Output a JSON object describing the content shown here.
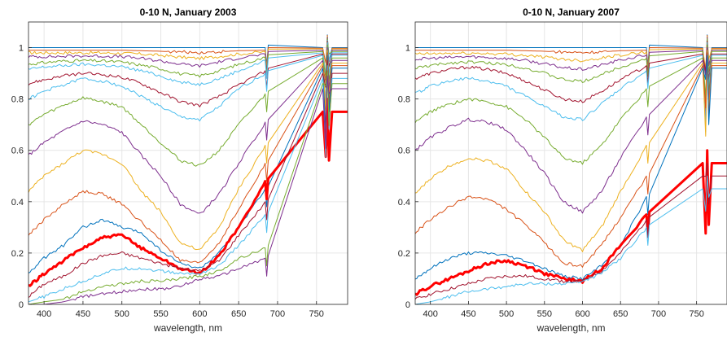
{
  "chart_data": [
    {
      "type": "line",
      "title": "0-10 N, January 2003",
      "xlabel": "wavelength, nm",
      "ylabel": "",
      "xlim": [
        380,
        790
      ],
      "ylim": [
        0,
        1.1
      ],
      "xticks": [
        400,
        450,
        500,
        550,
        600,
        650,
        700,
        750
      ],
      "yticks": [
        0,
        0.2,
        0.4,
        0.6,
        0.8,
        1
      ],
      "grid": true,
      "x": [
        380,
        400,
        425,
        450,
        475,
        500,
        525,
        550,
        575,
        600,
        625,
        650,
        685
      ],
      "series": [
        {
          "color": "#0072BD",
          "level": 1.0,
          "values": [
            1.0,
            1.0,
            1.0,
            1.0,
            1.0,
            1.0,
            1.0,
            1.0,
            1.0,
            1.0,
            1.0,
            1.0,
            1.0
          ]
        },
        {
          "color": "#D95319",
          "level": 0.998,
          "values": [
            0.99,
            0.99,
            0.99,
            0.99,
            0.99,
            0.99,
            0.988,
            0.986,
            0.983,
            0.981,
            0.984,
            0.988,
            0.99
          ]
        },
        {
          "color": "#EDB120",
          "level": 0.995,
          "values": [
            0.98,
            0.98,
            0.98,
            0.98,
            0.98,
            0.978,
            0.975,
            0.97,
            0.963,
            0.958,
            0.966,
            0.975,
            0.984
          ]
        },
        {
          "color": "#7E2F8E",
          "level": 0.99,
          "values": [
            0.965,
            0.965,
            0.966,
            0.968,
            0.967,
            0.965,
            0.958,
            0.948,
            0.936,
            0.929,
            0.945,
            0.96,
            0.975
          ]
        },
        {
          "color": "#77AC30",
          "level": 0.985,
          "values": [
            0.935,
            0.942,
            0.948,
            0.95,
            0.948,
            0.944,
            0.932,
            0.918,
            0.898,
            0.89,
            0.91,
            0.935,
            0.962
          ]
        },
        {
          "color": "#4DBEEE",
          "level": 0.98,
          "values": [
            0.915,
            0.925,
            0.93,
            0.935,
            0.932,
            0.925,
            0.91,
            0.89,
            0.865,
            0.857,
            0.88,
            0.91,
            0.95
          ]
        },
        {
          "color": "#A2142F",
          "level": 0.975,
          "values": [
            0.86,
            0.875,
            0.89,
            0.9,
            0.895,
            0.885,
            0.86,
            0.825,
            0.79,
            0.775,
            0.81,
            0.855,
            0.91
          ]
        },
        {
          "color": "#4DBEEE",
          "level": 0.97,
          "values": [
            0.8,
            0.83,
            0.855,
            0.88,
            0.87,
            0.85,
            0.81,
            0.77,
            0.73,
            0.72,
            0.77,
            0.84,
            0.9
          ]
        },
        {
          "color": "#77AC30",
          "level": 0.96,
          "values": [
            0.7,
            0.74,
            0.775,
            0.805,
            0.79,
            0.77,
            0.7,
            0.63,
            0.56,
            0.54,
            0.6,
            0.7,
            0.82
          ]
        },
        {
          "color": "#7E2F8E",
          "level": 0.95,
          "values": [
            0.58,
            0.63,
            0.675,
            0.715,
            0.7,
            0.67,
            0.58,
            0.5,
            0.39,
            0.35,
            0.43,
            0.55,
            0.71
          ]
        },
        {
          "color": "#EDB120",
          "level": 0.94,
          "values": [
            0.44,
            0.5,
            0.55,
            0.6,
            0.585,
            0.55,
            0.44,
            0.36,
            0.24,
            0.21,
            0.3,
            0.45,
            0.62
          ]
        },
        {
          "color": "#D95319",
          "level": 0.93,
          "values": [
            0.27,
            0.33,
            0.39,
            0.44,
            0.43,
            0.39,
            0.32,
            0.25,
            0.17,
            0.16,
            0.24,
            0.37,
            0.55
          ]
        },
        {
          "color": "#0072BD",
          "level": 0.92,
          "values": [
            0.12,
            0.18,
            0.23,
            0.3,
            0.33,
            0.3,
            0.28,
            0.21,
            0.16,
            0.14,
            0.2,
            0.3,
            0.45
          ]
        },
        {
          "color": "#FF0000",
          "level": 0.75,
          "values": [
            0.07,
            0.12,
            0.17,
            0.22,
            0.26,
            0.27,
            0.22,
            0.18,
            0.14,
            0.12,
            0.19,
            0.3,
            0.48
          ],
          "bold": true
        },
        {
          "color": "#A2142F",
          "level": 0.9,
          "values": [
            0.03,
            0.08,
            0.11,
            0.16,
            0.19,
            0.2,
            0.18,
            0.16,
            0.14,
            0.13,
            0.17,
            0.27,
            0.4
          ]
        },
        {
          "color": "#4DBEEE",
          "level": 0.88,
          "values": [
            0.01,
            0.03,
            0.06,
            0.09,
            0.12,
            0.14,
            0.14,
            0.13,
            0.12,
            0.12,
            0.15,
            0.23,
            0.35
          ]
        },
        {
          "color": "#77AC30",
          "level": 0.86,
          "values": [
            0.0,
            0.01,
            0.02,
            0.05,
            0.07,
            0.08,
            0.09,
            0.09,
            0.1,
            0.11,
            0.13,
            0.18,
            0.22
          ]
        },
        {
          "color": "#7E2F8E",
          "level": 0.84,
          "values": [
            0.0,
            0.0,
            0.01,
            0.03,
            0.04,
            0.05,
            0.06,
            0.06,
            0.07,
            0.1,
            0.11,
            0.14,
            0.18
          ]
        }
      ]
    },
    {
      "type": "line",
      "title": "0-10 N, January 2007",
      "xlabel": "wavelength, nm",
      "ylabel": "",
      "xlim": [
        380,
        790
      ],
      "ylim": [
        0,
        1.1
      ],
      "xticks": [
        400,
        450,
        500,
        550,
        600,
        650,
        700,
        750
      ],
      "yticks": [
        0,
        0.2,
        0.4,
        0.6,
        0.8,
        1
      ],
      "grid": true,
      "x": [
        380,
        400,
        425,
        450,
        475,
        500,
        525,
        550,
        575,
        600,
        625,
        650,
        685
      ],
      "series": [
        {
          "color": "#0072BD",
          "level": 1.0,
          "values": [
            1.0,
            1.0,
            1.0,
            1.0,
            1.0,
            1.0,
            1.0,
            1.0,
            1.0,
            1.0,
            1.0,
            1.0,
            1.0
          ]
        },
        {
          "color": "#D95319",
          "level": 0.998,
          "values": [
            0.99,
            0.99,
            0.99,
            0.99,
            0.99,
            0.99,
            0.988,
            0.986,
            0.983,
            0.981,
            0.984,
            0.988,
            0.99
          ]
        },
        {
          "color": "#EDB120",
          "level": 0.995,
          "values": [
            0.975,
            0.976,
            0.978,
            0.978,
            0.977,
            0.975,
            0.97,
            0.963,
            0.955,
            0.95,
            0.96,
            0.972,
            0.982
          ]
        },
        {
          "color": "#7E2F8E",
          "level": 0.99,
          "values": [
            0.955,
            0.958,
            0.962,
            0.965,
            0.962,
            0.958,
            0.95,
            0.937,
            0.922,
            0.915,
            0.932,
            0.952,
            0.972
          ]
        },
        {
          "color": "#77AC30",
          "level": 0.985,
          "values": [
            0.92,
            0.93,
            0.94,
            0.945,
            0.94,
            0.935,
            0.92,
            0.9,
            0.875,
            0.868,
            0.895,
            0.925,
            0.958
          ]
        },
        {
          "color": "#A2142F",
          "level": 0.975,
          "values": [
            0.88,
            0.9,
            0.915,
            0.925,
            0.915,
            0.9,
            0.87,
            0.835,
            0.8,
            0.79,
            0.83,
            0.875,
            0.93
          ]
        },
        {
          "color": "#4DBEEE",
          "level": 0.97,
          "values": [
            0.82,
            0.85,
            0.87,
            0.88,
            0.87,
            0.85,
            0.81,
            0.77,
            0.73,
            0.72,
            0.78,
            0.84,
            0.91
          ]
        },
        {
          "color": "#77AC30",
          "level": 0.96,
          "values": [
            0.71,
            0.75,
            0.78,
            0.8,
            0.79,
            0.77,
            0.72,
            0.65,
            0.57,
            0.55,
            0.62,
            0.72,
            0.84
          ]
        },
        {
          "color": "#7E2F8E",
          "level": 0.95,
          "values": [
            0.6,
            0.65,
            0.69,
            0.72,
            0.71,
            0.68,
            0.6,
            0.51,
            0.4,
            0.36,
            0.44,
            0.57,
            0.73
          ]
        },
        {
          "color": "#EDB120",
          "level": 0.94,
          "values": [
            0.43,
            0.49,
            0.54,
            0.57,
            0.56,
            0.53,
            0.44,
            0.36,
            0.25,
            0.21,
            0.3,
            0.44,
            0.62
          ]
        },
        {
          "color": "#D95319",
          "level": 0.93,
          "values": [
            0.28,
            0.33,
            0.38,
            0.42,
            0.41,
            0.37,
            0.31,
            0.24,
            0.16,
            0.15,
            0.23,
            0.34,
            0.5
          ]
        },
        {
          "color": "#0072BD",
          "level": 0.92,
          "values": [
            0.1,
            0.14,
            0.18,
            0.2,
            0.2,
            0.19,
            0.17,
            0.14,
            0.11,
            0.1,
            0.15,
            0.23,
            0.42
          ]
        },
        {
          "color": "#FF0000",
          "level": 0.55,
          "values": [
            0.04,
            0.07,
            0.1,
            0.13,
            0.16,
            0.17,
            0.15,
            0.12,
            0.1,
            0.09,
            0.14,
            0.23,
            0.35
          ],
          "bold": true
        },
        {
          "color": "#A2142F",
          "level": 0.5,
          "values": [
            0.02,
            0.04,
            0.06,
            0.08,
            0.1,
            0.11,
            0.11,
            0.1,
            0.09,
            0.09,
            0.13,
            0.2,
            0.33
          ]
        },
        {
          "color": "#4DBEEE",
          "level": 0.45,
          "values": [
            0.0,
            0.01,
            0.03,
            0.05,
            0.06,
            0.07,
            0.08,
            0.08,
            0.08,
            0.09,
            0.12,
            0.18,
            0.3
          ]
        }
      ]
    }
  ]
}
